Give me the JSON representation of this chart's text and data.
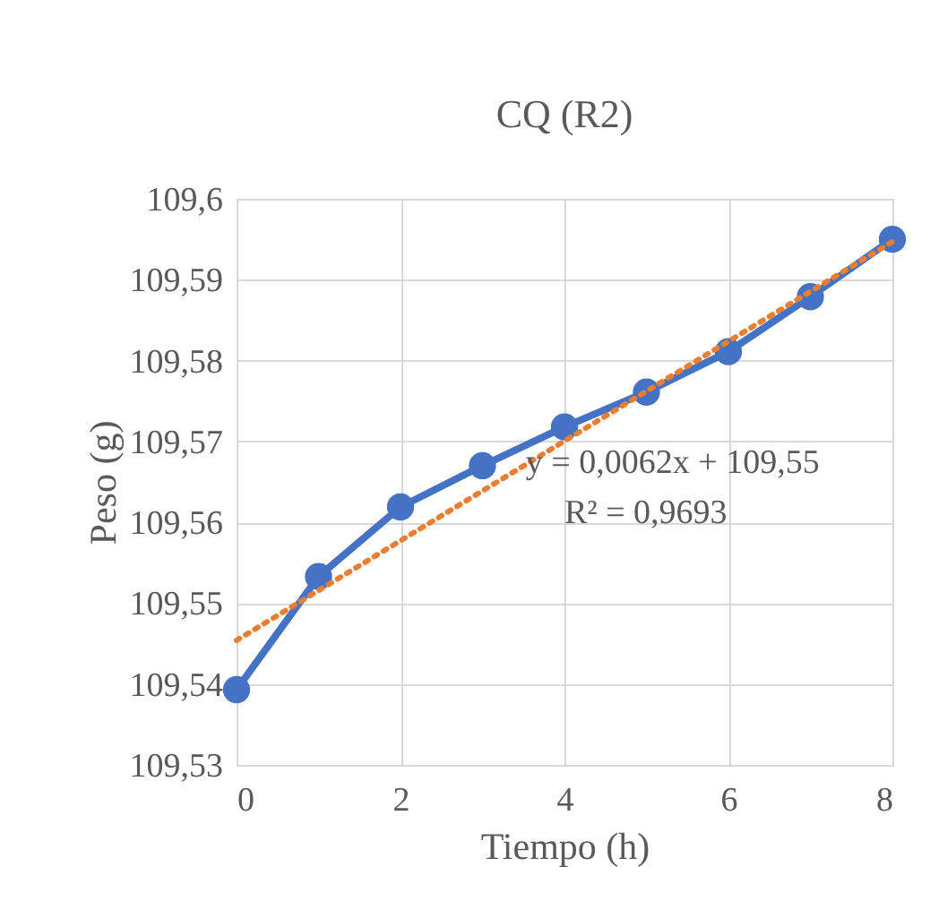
{
  "chart_data": {
    "type": "line",
    "title": "CQ (R2)",
    "xlabel": "Tiempo (h)",
    "ylabel": "Peso (g)",
    "x": [
      0,
      1,
      2,
      3,
      4,
      5,
      6,
      7,
      8
    ],
    "series": [
      {
        "color": "#4472c4",
        "marker": "circle",
        "line_style": "solid",
        "values": [
          109.5393,
          109.5533,
          109.5619,
          109.567,
          109.5718,
          109.5761,
          109.5811,
          109.5879,
          109.595
        ]
      },
      {
        "type": "line",
        "x": [
          0,
          8
        ],
        "color": "#ed7d31",
        "marker": "none",
        "line_style": "dotted",
        "values": [
          109.5454,
          109.5947
        ]
      }
    ],
    "xlim": [
      0,
      8
    ],
    "xticks": [
      0,
      2,
      4,
      6,
      8
    ],
    "ylim": [
      109.53,
      109.6
    ],
    "yticks": [
      {
        "value": 109.53,
        "label": "109,53"
      },
      {
        "value": 109.54,
        "label": "109,54"
      },
      {
        "value": 109.55,
        "label": "109,55"
      },
      {
        "value": 109.56,
        "label": "109,56"
      },
      {
        "value": 109.57,
        "label": "109,57"
      },
      {
        "value": 109.58,
        "label": "109,58"
      },
      {
        "value": 109.59,
        "label": "109,59"
      },
      {
        "value": 109.6,
        "label": "109,6"
      }
    ],
    "grid": true,
    "annotations": [
      "y = 0,0062x + 109,55",
      "R² = 0,9693"
    ]
  }
}
